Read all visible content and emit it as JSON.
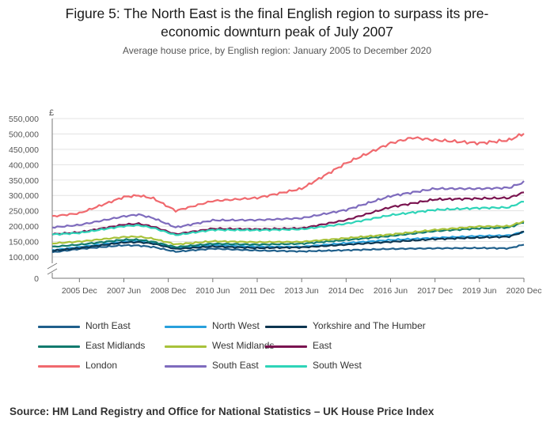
{
  "title_line1": "Figure 5: The North East is the final English region to surpass its pre-",
  "title_line2": "economic downturn peak of July 2007",
  "subtitle": "Average house price, by English region: January 2005 to December 2020",
  "source": "Source: HM Land Registry and Office for National Statistics – UK House Price Index",
  "chart_data": {
    "type": "line",
    "title": "Figure 5: The North East is the final English region to surpass its pre-economic downturn peak of July 2007",
    "subtitle": "Average house price, by English region: January 2005 to December 2020",
    "ylabel": "£",
    "xlabel": "",
    "y_ticks": [
      "0",
      "100,000",
      "150,000",
      "200,000",
      "250,000",
      "300,000",
      "350,000",
      "400,000",
      "450,000",
      "500,000",
      "550,000"
    ],
    "x_ticks": [
      "2005 Dec",
      "2007 Jun",
      "2008 Dec",
      "2010 Jun",
      "2011 Dec",
      "2013 Jun",
      "2014 Dec",
      "2016 Jun",
      "2017 Dec",
      "2019 Jun",
      "2020 Dec"
    ],
    "ylim": [
      0,
      550000
    ],
    "y_axis_break": true,
    "grid": true,
    "x_range": [
      "2005-01",
      "2020-12"
    ],
    "legend_position": "bottom",
    "series": [
      {
        "name": "North East",
        "color": "#1f5f8b",
        "points": [
          [
            "2005-01",
            115000
          ],
          [
            "2005-12",
            126000
          ],
          [
            "2007-06",
            138000
          ],
          [
            "2007-12",
            137000
          ],
          [
            "2008-06",
            132000
          ],
          [
            "2009-03",
            117000
          ],
          [
            "2010-06",
            127000
          ],
          [
            "2011-12",
            121000
          ],
          [
            "2013-06",
            118000
          ],
          [
            "2014-12",
            122000
          ],
          [
            "2016-06",
            126000
          ],
          [
            "2017-12",
            128000
          ],
          [
            "2019-06",
            129000
          ],
          [
            "2020-06",
            128000
          ],
          [
            "2020-12",
            140000
          ]
        ]
      },
      {
        "name": "North West",
        "color": "#28a0dc",
        "points": [
          [
            "2005-01",
            122000
          ],
          [
            "2005-12",
            132000
          ],
          [
            "2007-06",
            150000
          ],
          [
            "2007-12",
            152000
          ],
          [
            "2008-06",
            145000
          ],
          [
            "2009-03",
            128000
          ],
          [
            "2010-06",
            138000
          ],
          [
            "2011-12",
            133000
          ],
          [
            "2013-06",
            133000
          ],
          [
            "2014-12",
            145000
          ],
          [
            "2016-06",
            155000
          ],
          [
            "2017-12",
            162000
          ],
          [
            "2019-06",
            168000
          ],
          [
            "2020-06",
            170000
          ],
          [
            "2020-12",
            182000
          ]
        ]
      },
      {
        "name": "Yorkshire and The Humber",
        "color": "#0c3550",
        "points": [
          [
            "2005-01",
            120000
          ],
          [
            "2005-12",
            129000
          ],
          [
            "2007-06",
            147000
          ],
          [
            "2007-12",
            148000
          ],
          [
            "2008-06",
            143000
          ],
          [
            "2009-03",
            126000
          ],
          [
            "2010-06",
            134000
          ],
          [
            "2011-12",
            129000
          ],
          [
            "2013-06",
            131000
          ],
          [
            "2014-12",
            140000
          ],
          [
            "2016-06",
            149000
          ],
          [
            "2017-12",
            158000
          ],
          [
            "2019-06",
            163000
          ],
          [
            "2020-06",
            166000
          ],
          [
            "2020-12",
            182000
          ]
        ]
      },
      {
        "name": "East Midlands",
        "color": "#117a6e",
        "points": [
          [
            "2005-01",
            133000
          ],
          [
            "2005-12",
            140000
          ],
          [
            "2007-06",
            156000
          ],
          [
            "2007-12",
            156000
          ],
          [
            "2008-06",
            149000
          ],
          [
            "2009-03",
            132000
          ],
          [
            "2010-06",
            143000
          ],
          [
            "2011-12",
            140000
          ],
          [
            "2013-06",
            143000
          ],
          [
            "2014-12",
            155000
          ],
          [
            "2016-06",
            168000
          ],
          [
            "2017-12",
            184000
          ],
          [
            "2019-06",
            193000
          ],
          [
            "2020-06",
            196000
          ],
          [
            "2020-12",
            213000
          ]
        ]
      },
      {
        "name": "West Midlands",
        "color": "#a8c23a",
        "points": [
          [
            "2005-01",
            144000
          ],
          [
            "2005-12",
            150000
          ],
          [
            "2007-06",
            165000
          ],
          [
            "2007-12",
            166000
          ],
          [
            "2008-06",
            159000
          ],
          [
            "2009-03",
            141000
          ],
          [
            "2010-06",
            151000
          ],
          [
            "2011-12",
            148000
          ],
          [
            "2013-06",
            149000
          ],
          [
            "2014-12",
            161000
          ],
          [
            "2016-06",
            173000
          ],
          [
            "2017-12",
            188000
          ],
          [
            "2019-06",
            199000
          ],
          [
            "2020-06",
            200000
          ],
          [
            "2020-12",
            216000
          ]
        ]
      },
      {
        "name": "East",
        "color": "#7a1450",
        "points": [
          [
            "2005-01",
            174000
          ],
          [
            "2005-12",
            180000
          ],
          [
            "2007-06",
            205000
          ],
          [
            "2007-12",
            208000
          ],
          [
            "2008-06",
            198000
          ],
          [
            "2009-03",
            174000
          ],
          [
            "2010-06",
            192000
          ],
          [
            "2011-12",
            190000
          ],
          [
            "2013-06",
            193000
          ],
          [
            "2014-12",
            220000
          ],
          [
            "2016-06",
            262000
          ],
          [
            "2017-12",
            287000
          ],
          [
            "2019-06",
            290000
          ],
          [
            "2020-06",
            292000
          ],
          [
            "2020-12",
            310000
          ]
        ]
      },
      {
        "name": "London",
        "color": "#f0696e",
        "points": [
          [
            "2005-01",
            232000
          ],
          [
            "2005-12",
            242000
          ],
          [
            "2007-06",
            295000
          ],
          [
            "2007-12",
            300000
          ],
          [
            "2008-06",
            290000
          ],
          [
            "2009-03",
            250000
          ],
          [
            "2010-06",
            282000
          ],
          [
            "2011-12",
            292000
          ],
          [
            "2013-06",
            322000
          ],
          [
            "2014-12",
            405000
          ],
          [
            "2016-06",
            470000
          ],
          [
            "2017-03",
            488000
          ],
          [
            "2017-12",
            480000
          ],
          [
            "2019-06",
            470000
          ],
          [
            "2020-06",
            480000
          ],
          [
            "2020-12",
            502000
          ]
        ]
      },
      {
        "name": "South East",
        "color": "#7e6bbd",
        "points": [
          [
            "2005-01",
            196000
          ],
          [
            "2005-12",
            204000
          ],
          [
            "2007-06",
            232000
          ],
          [
            "2007-12",
            238000
          ],
          [
            "2008-06",
            226000
          ],
          [
            "2009-03",
            196000
          ],
          [
            "2010-06",
            219000
          ],
          [
            "2011-12",
            220000
          ],
          [
            "2013-06",
            226000
          ],
          [
            "2014-12",
            253000
          ],
          [
            "2016-06",
            298000
          ],
          [
            "2017-12",
            322000
          ],
          [
            "2019-06",
            322000
          ],
          [
            "2020-06",
            325000
          ],
          [
            "2020-12",
            343000
          ]
        ]
      },
      {
        "name": "South West",
        "color": "#2ed4b8",
        "points": [
          [
            "2005-01",
            173000
          ],
          [
            "2005-12",
            178000
          ],
          [
            "2007-06",
            200000
          ],
          [
            "2007-12",
            203000
          ],
          [
            "2008-06",
            194000
          ],
          [
            "2009-03",
            171000
          ],
          [
            "2010-06",
            188000
          ],
          [
            "2011-12",
            187000
          ],
          [
            "2013-06",
            190000
          ],
          [
            "2014-12",
            208000
          ],
          [
            "2016-06",
            236000
          ],
          [
            "2017-12",
            253000
          ],
          [
            "2019-06",
            259000
          ],
          [
            "2020-06",
            261000
          ],
          [
            "2020-12",
            281000
          ]
        ]
      }
    ]
  }
}
